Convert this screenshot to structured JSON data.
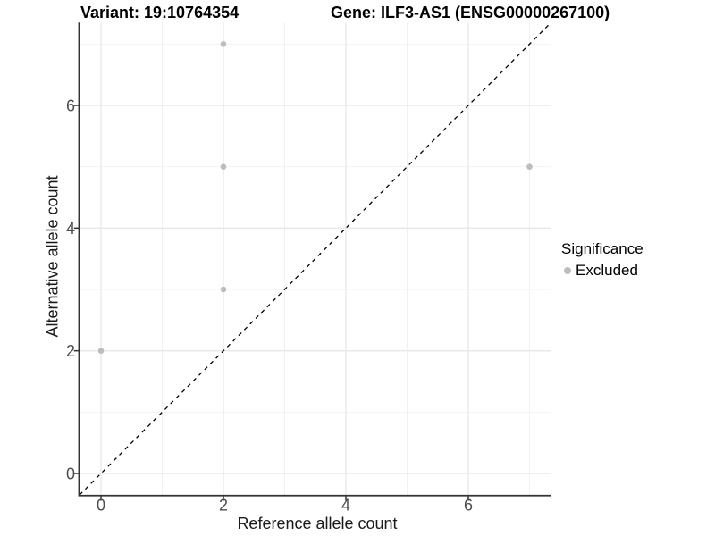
{
  "titles": {
    "variant": "Variant: 19:10764354",
    "gene": "Gene: ILF3-AS1 (ENSG00000267100)"
  },
  "legend": {
    "title": "Significance",
    "items": [
      {
        "label": "Excluded",
        "color": "#bdbdbd"
      }
    ]
  },
  "colors": {
    "point": "#bdbdbd",
    "grid_major": "#e7e7e7",
    "grid_minor": "#f0f0f0",
    "axis_line": "#333333",
    "tick_label": "#4d4d4d",
    "reference_line": "#000000",
    "background": "#ffffff"
  },
  "chart_data": {
    "type": "scatter",
    "title": "Variant: 19:10764354 / Gene: ILF3-AS1 (ENSG00000267100)",
    "xlabel": "Reference allele count",
    "ylabel": "Alternative allele count",
    "xlim": [
      -0.35,
      7.35
    ],
    "ylim": [
      -0.35,
      7.35
    ],
    "x_ticks": [
      0,
      2,
      4,
      6
    ],
    "y_ticks": [
      0,
      2,
      4,
      6
    ],
    "x_minor_ticks": [
      1,
      3,
      5,
      7
    ],
    "y_minor_ticks": [
      1,
      3,
      5,
      7
    ],
    "grid": true,
    "legend_position": "right",
    "series": [
      {
        "name": "Excluded",
        "color": "#bdbdbd",
        "points": [
          [
            0,
            2
          ],
          [
            2,
            3
          ],
          [
            2,
            5
          ],
          [
            2,
            7
          ],
          [
            7,
            5
          ]
        ]
      }
    ],
    "reference_line": {
      "slope": 1,
      "intercept": 0,
      "style": "dashed",
      "color": "#000000"
    }
  }
}
